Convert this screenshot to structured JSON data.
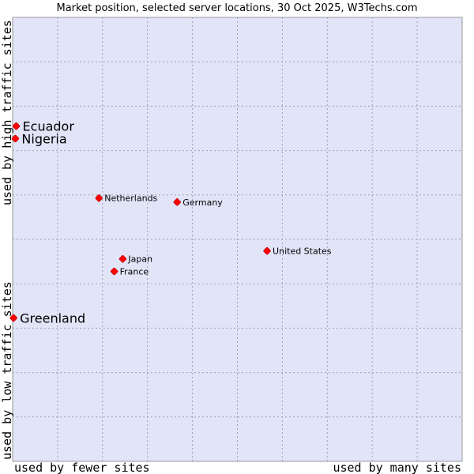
{
  "chart_data": {
    "type": "scatter",
    "title": "Market position, selected server locations, 30 Oct 2025, W3Techs.com",
    "x_axis": {
      "low_label": "used by fewer sites",
      "high_label": "used by many sites",
      "range": [
        0,
        100
      ]
    },
    "y_axis": {
      "low_label": "used by low traffic sites",
      "high_label": "used by high traffic sites",
      "range": [
        0,
        100
      ]
    },
    "grid": true,
    "point_color": "#ff0000",
    "plot_background": "#e2e4f8",
    "points": [
      {
        "name": "Ecuador",
        "x": 0.8,
        "y": 75.5,
        "emphasis": "large"
      },
      {
        "name": "Nigeria",
        "x": 0.6,
        "y": 72.7,
        "emphasis": "large"
      },
      {
        "name": "Netherlands",
        "x": 19.2,
        "y": 59.3,
        "emphasis": "normal"
      },
      {
        "name": "Germany",
        "x": 36.6,
        "y": 58.4,
        "emphasis": "normal"
      },
      {
        "name": "United States",
        "x": 56.6,
        "y": 47.4,
        "emphasis": "normal"
      },
      {
        "name": "Japan",
        "x": 24.5,
        "y": 45.6,
        "emphasis": "normal"
      },
      {
        "name": "France",
        "x": 22.6,
        "y": 42.8,
        "emphasis": "normal"
      },
      {
        "name": "Greenland",
        "x": 0.2,
        "y": 32.3,
        "emphasis": "large"
      }
    ]
  }
}
